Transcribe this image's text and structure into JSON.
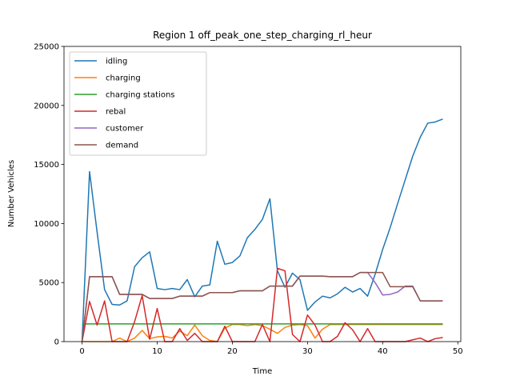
{
  "chart_data": {
    "type": "line",
    "title": "Region 1 off_peak_one_step_charging_rl_heur",
    "xlabel": "Time",
    "ylabel": "Number Vehicles",
    "xlim": [
      -2.4,
      50.4
    ],
    "ylim": [
      0,
      25000
    ],
    "xticks": [
      0,
      10,
      20,
      30,
      40,
      50
    ],
    "yticks": [
      0,
      5000,
      10000,
      15000,
      20000,
      25000
    ],
    "legend_position": "upper-left",
    "grid": false,
    "x": [
      0,
      1,
      2,
      3,
      4,
      5,
      6,
      7,
      8,
      9,
      10,
      11,
      12,
      13,
      14,
      15,
      16,
      17,
      18,
      19,
      20,
      21,
      22,
      23,
      24,
      25,
      26,
      27,
      28,
      29,
      30,
      31,
      32,
      33,
      34,
      35,
      36,
      37,
      38,
      39,
      40,
      41,
      42,
      43,
      44,
      45,
      46,
      47,
      48
    ],
    "series": [
      {
        "name": "idling",
        "color": "#1f77b4",
        "values": [
          0,
          14400,
          9300,
          4400,
          3150,
          3100,
          3450,
          6350,
          7100,
          7600,
          4500,
          4400,
          4500,
          4400,
          5250,
          3800,
          4700,
          4800,
          8500,
          6550,
          6700,
          7250,
          8800,
          9500,
          10350,
          12100,
          6000,
          4600,
          5800,
          5250,
          2650,
          3350,
          3850,
          3700,
          4050,
          4600,
          4200,
          4500,
          3850,
          5700,
          7800,
          9650,
          11700,
          13700,
          15700,
          17300,
          18500,
          18600,
          18850
        ]
      },
      {
        "name": "charging",
        "color": "#ff7f0e",
        "values": [
          0,
          0,
          0,
          0,
          0,
          300,
          0,
          300,
          950,
          250,
          400,
          450,
          300,
          900,
          500,
          1400,
          500,
          100,
          0,
          1150,
          1450,
          1450,
          1350,
          1450,
          1350,
          1050,
          700,
          1200,
          1400,
          1450,
          1350,
          300,
          1050,
          1450,
          1450,
          1450,
          1450,
          1450,
          1450,
          1450,
          1450,
          1450,
          1450,
          1450,
          1450,
          1450,
          1450,
          1450,
          1450
        ]
      },
      {
        "name": "charging stations",
        "color": "#2ca02c",
        "values": [
          1500,
          1500,
          1500,
          1500,
          1500,
          1500,
          1500,
          1500,
          1500,
          1500,
          1500,
          1500,
          1500,
          1500,
          1500,
          1500,
          1500,
          1500,
          1500,
          1500,
          1500,
          1500,
          1500,
          1500,
          1500,
          1500,
          1500,
          1500,
          1500,
          1500,
          1500,
          1500,
          1500,
          1500,
          1500,
          1500,
          1500,
          1500,
          1500,
          1500,
          1500,
          1500,
          1500,
          1500,
          1500,
          1500,
          1500,
          1500,
          1500
        ]
      },
      {
        "name": "rebal",
        "color": "#d62728",
        "values": [
          0,
          3400,
          1400,
          3450,
          0,
          0,
          0,
          1700,
          3900,
          200,
          2800,
          0,
          0,
          1100,
          100,
          700,
          0,
          0,
          0,
          1300,
          0,
          0,
          0,
          0,
          1450,
          0,
          6200,
          6000,
          600,
          0,
          2250,
          1400,
          0,
          0,
          450,
          1600,
          1000,
          0,
          1100,
          0,
          0,
          0,
          0,
          0,
          150,
          300,
          0,
          250,
          350
        ]
      },
      {
        "name": "customer",
        "color": "#9467bd",
        "values": [
          0,
          5500,
          5500,
          5500,
          5500,
          4000,
          4000,
          4000,
          4000,
          3650,
          3650,
          3650,
          3650,
          3850,
          3850,
          3850,
          3850,
          4150,
          4150,
          4150,
          4150,
          4300,
          4300,
          4300,
          4300,
          4700,
          4700,
          4700,
          4700,
          5550,
          5550,
          5550,
          5550,
          5500,
          5500,
          5500,
          5500,
          5850,
          5850,
          5000,
          3950,
          4000,
          4200,
          4700,
          4700,
          3450,
          3450,
          3450,
          3450
        ]
      },
      {
        "name": "demand",
        "color": "#8c564b",
        "values": [
          0,
          5500,
          5500,
          5500,
          5500,
          4000,
          4000,
          4000,
          4000,
          3650,
          3650,
          3650,
          3650,
          3850,
          3850,
          3850,
          3850,
          4150,
          4150,
          4150,
          4150,
          4300,
          4300,
          4300,
          4300,
          4700,
          4700,
          4700,
          4700,
          5550,
          5550,
          5550,
          5550,
          5500,
          5500,
          5500,
          5500,
          5850,
          5850,
          5850,
          5850,
          4650,
          4650,
          4650,
          4650,
          3450,
          3450,
          3450,
          3450
        ]
      }
    ]
  }
}
